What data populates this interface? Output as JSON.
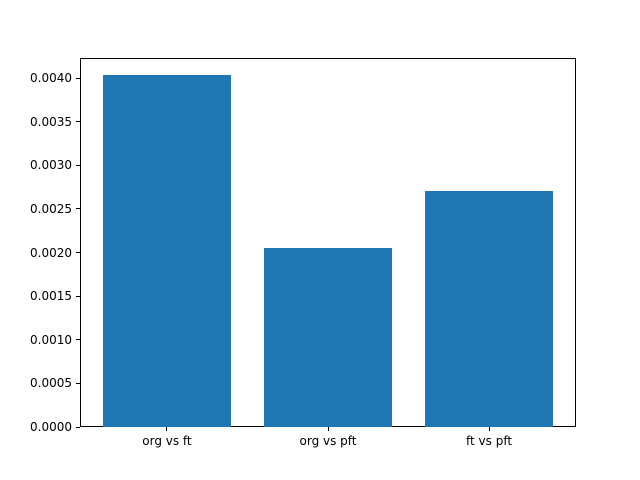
{
  "chart_data": {
    "type": "bar",
    "title": "",
    "xlabel": "",
    "ylabel": "",
    "categories": [
      "org vs ft",
      "org vs pft",
      "ft vs pft"
    ],
    "values": [
      0.00403,
      0.00205,
      0.00271
    ],
    "series": [
      {
        "name": "",
        "values": [
          0.00403,
          0.00205,
          0.00271
        ]
      }
    ],
    "bar_color": "#1f77b4",
    "bar_width_fraction": 0.8,
    "x_margin_fraction": 0.05,
    "ylim": [
      0,
      0.00423
    ],
    "yticks": [
      0.0,
      0.0005,
      0.001,
      0.0015,
      0.002,
      0.0025,
      0.003,
      0.0035,
      0.004
    ],
    "ytick_labels": [
      "0.0000",
      "0.0005",
      "0.0010",
      "0.0015",
      "0.0020",
      "0.0025",
      "0.0030",
      "0.0035",
      "0.0040"
    ],
    "grid": false,
    "legend_position": "none",
    "axis_color": "#000000",
    "text_color": "#000000",
    "background_color": "#ffffff"
  }
}
